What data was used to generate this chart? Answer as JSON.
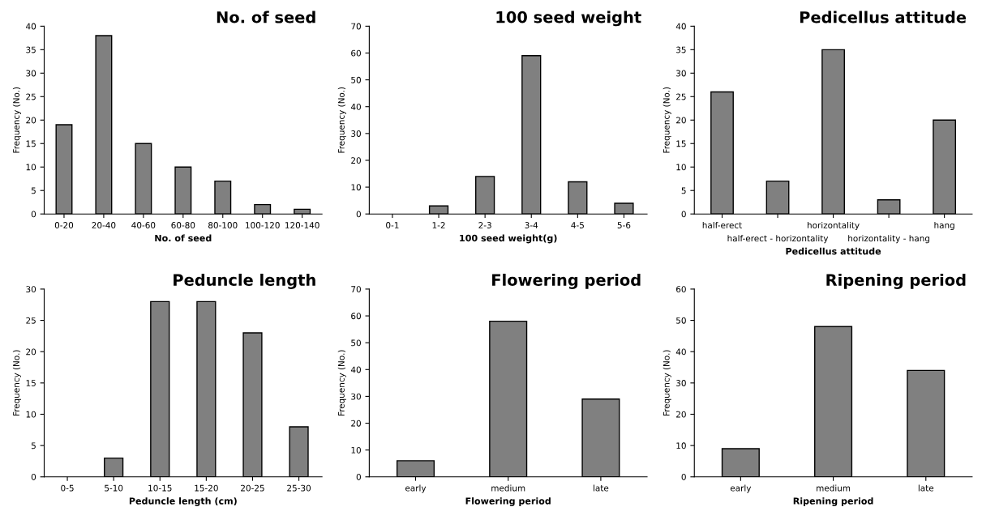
{
  "chart_data": [
    {
      "type": "bar",
      "title": "No. of seed",
      "xlabel": "No. of seed",
      "ylabel": "Frequency (No.)",
      "categories": [
        "0-20",
        "20-40",
        "40-60",
        "60-80",
        "80-100",
        "100-120",
        "120-140"
      ],
      "values": [
        19,
        38,
        15,
        10,
        7,
        2,
        1
      ],
      "color": "#808080",
      "ylim": [
        0,
        40
      ],
      "yticks": [
        0,
        5,
        10,
        15,
        20,
        25,
        30,
        35,
        40
      ],
      "grid": false,
      "legend": false
    },
    {
      "type": "bar",
      "title": "100 seed weight",
      "xlabel": "100 seed weight(g)",
      "ylabel": "Frequency (No.)",
      "categories": [
        "0-1",
        "1-2",
        "2-3",
        "3-4",
        "4-5",
        "5-6"
      ],
      "values": [
        0,
        3,
        14,
        59,
        12,
        4
      ],
      "color": "#808080",
      "ylim": [
        0,
        70
      ],
      "yticks": [
        0,
        10,
        20,
        30,
        40,
        50,
        60,
        70
      ],
      "grid": false,
      "legend": false
    },
    {
      "type": "bar",
      "title": "Pedicellus attitude",
      "xlabel": "Pedicellus attitude",
      "ylabel": "Frequency (No.)",
      "categories": [
        "half-erect",
        "half-erect - horizontality",
        "horizontality",
        "horizontality - hang",
        "hang"
      ],
      "values": [
        26,
        7,
        35,
        3,
        20
      ],
      "color": "#808080",
      "ylim": [
        0,
        40
      ],
      "yticks": [
        0,
        5,
        10,
        15,
        20,
        25,
        30,
        35,
        40
      ],
      "grid": false,
      "legend": false
    },
    {
      "type": "bar",
      "title": "Peduncle length",
      "xlabel": "Peduncle length (cm)",
      "ylabel": "Frequency (No.)",
      "categories": [
        "0-5",
        "5-10",
        "10-15",
        "15-20",
        "20-25",
        "25-30"
      ],
      "values": [
        0,
        3,
        28,
        28,
        23,
        8
      ],
      "color": "#808080",
      "ylim": [
        0,
        30
      ],
      "yticks": [
        0,
        5,
        10,
        15,
        20,
        25,
        30
      ],
      "grid": false,
      "legend": false
    },
    {
      "type": "bar",
      "title": "Flowering period",
      "xlabel": "Flowering period",
      "ylabel": "Frequency (No.)",
      "categories": [
        "early",
        "medium",
        "late"
      ],
      "values": [
        6,
        58,
        29
      ],
      "color": "#808080",
      "ylim": [
        0,
        70
      ],
      "yticks": [
        0,
        10,
        20,
        30,
        40,
        50,
        60,
        70
      ],
      "grid": false,
      "legend": false
    },
    {
      "type": "bar",
      "title": "Ripening period",
      "xlabel": "Ripening period",
      "ylabel": "Frequency (No.)",
      "categories": [
        "early",
        "medium",
        "late"
      ],
      "values": [
        9,
        48,
        34
      ],
      "color": "#808080",
      "ylim": [
        0,
        60
      ],
      "yticks": [
        0,
        10,
        20,
        30,
        40,
        50,
        60
      ],
      "grid": false,
      "legend": false
    }
  ]
}
